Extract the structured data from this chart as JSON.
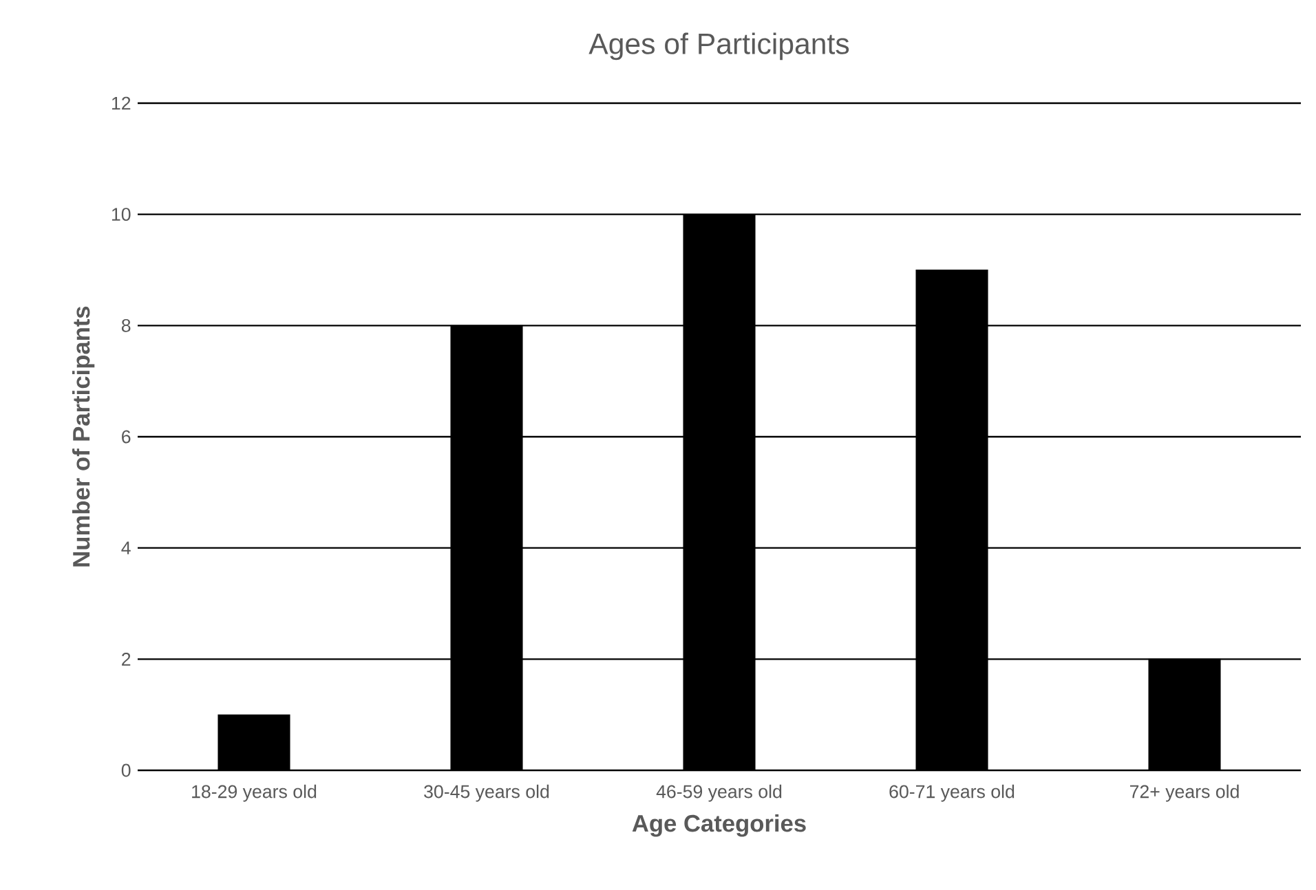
{
  "chart_data": {
    "type": "bar",
    "title": "Ages of Participants",
    "xlabel": "Age Categories",
    "ylabel": "Number of Participants",
    "categories": [
      "18-29 years old",
      "30-45 years old",
      "46-59 years old",
      "60-71 years old",
      "72+ years old"
    ],
    "values": [
      1,
      8,
      10,
      9,
      2
    ],
    "color": "#000000",
    "ylim": [
      0,
      12
    ],
    "yticks": [
      0,
      2,
      4,
      6,
      8,
      10,
      12
    ],
    "grid": "y"
  }
}
